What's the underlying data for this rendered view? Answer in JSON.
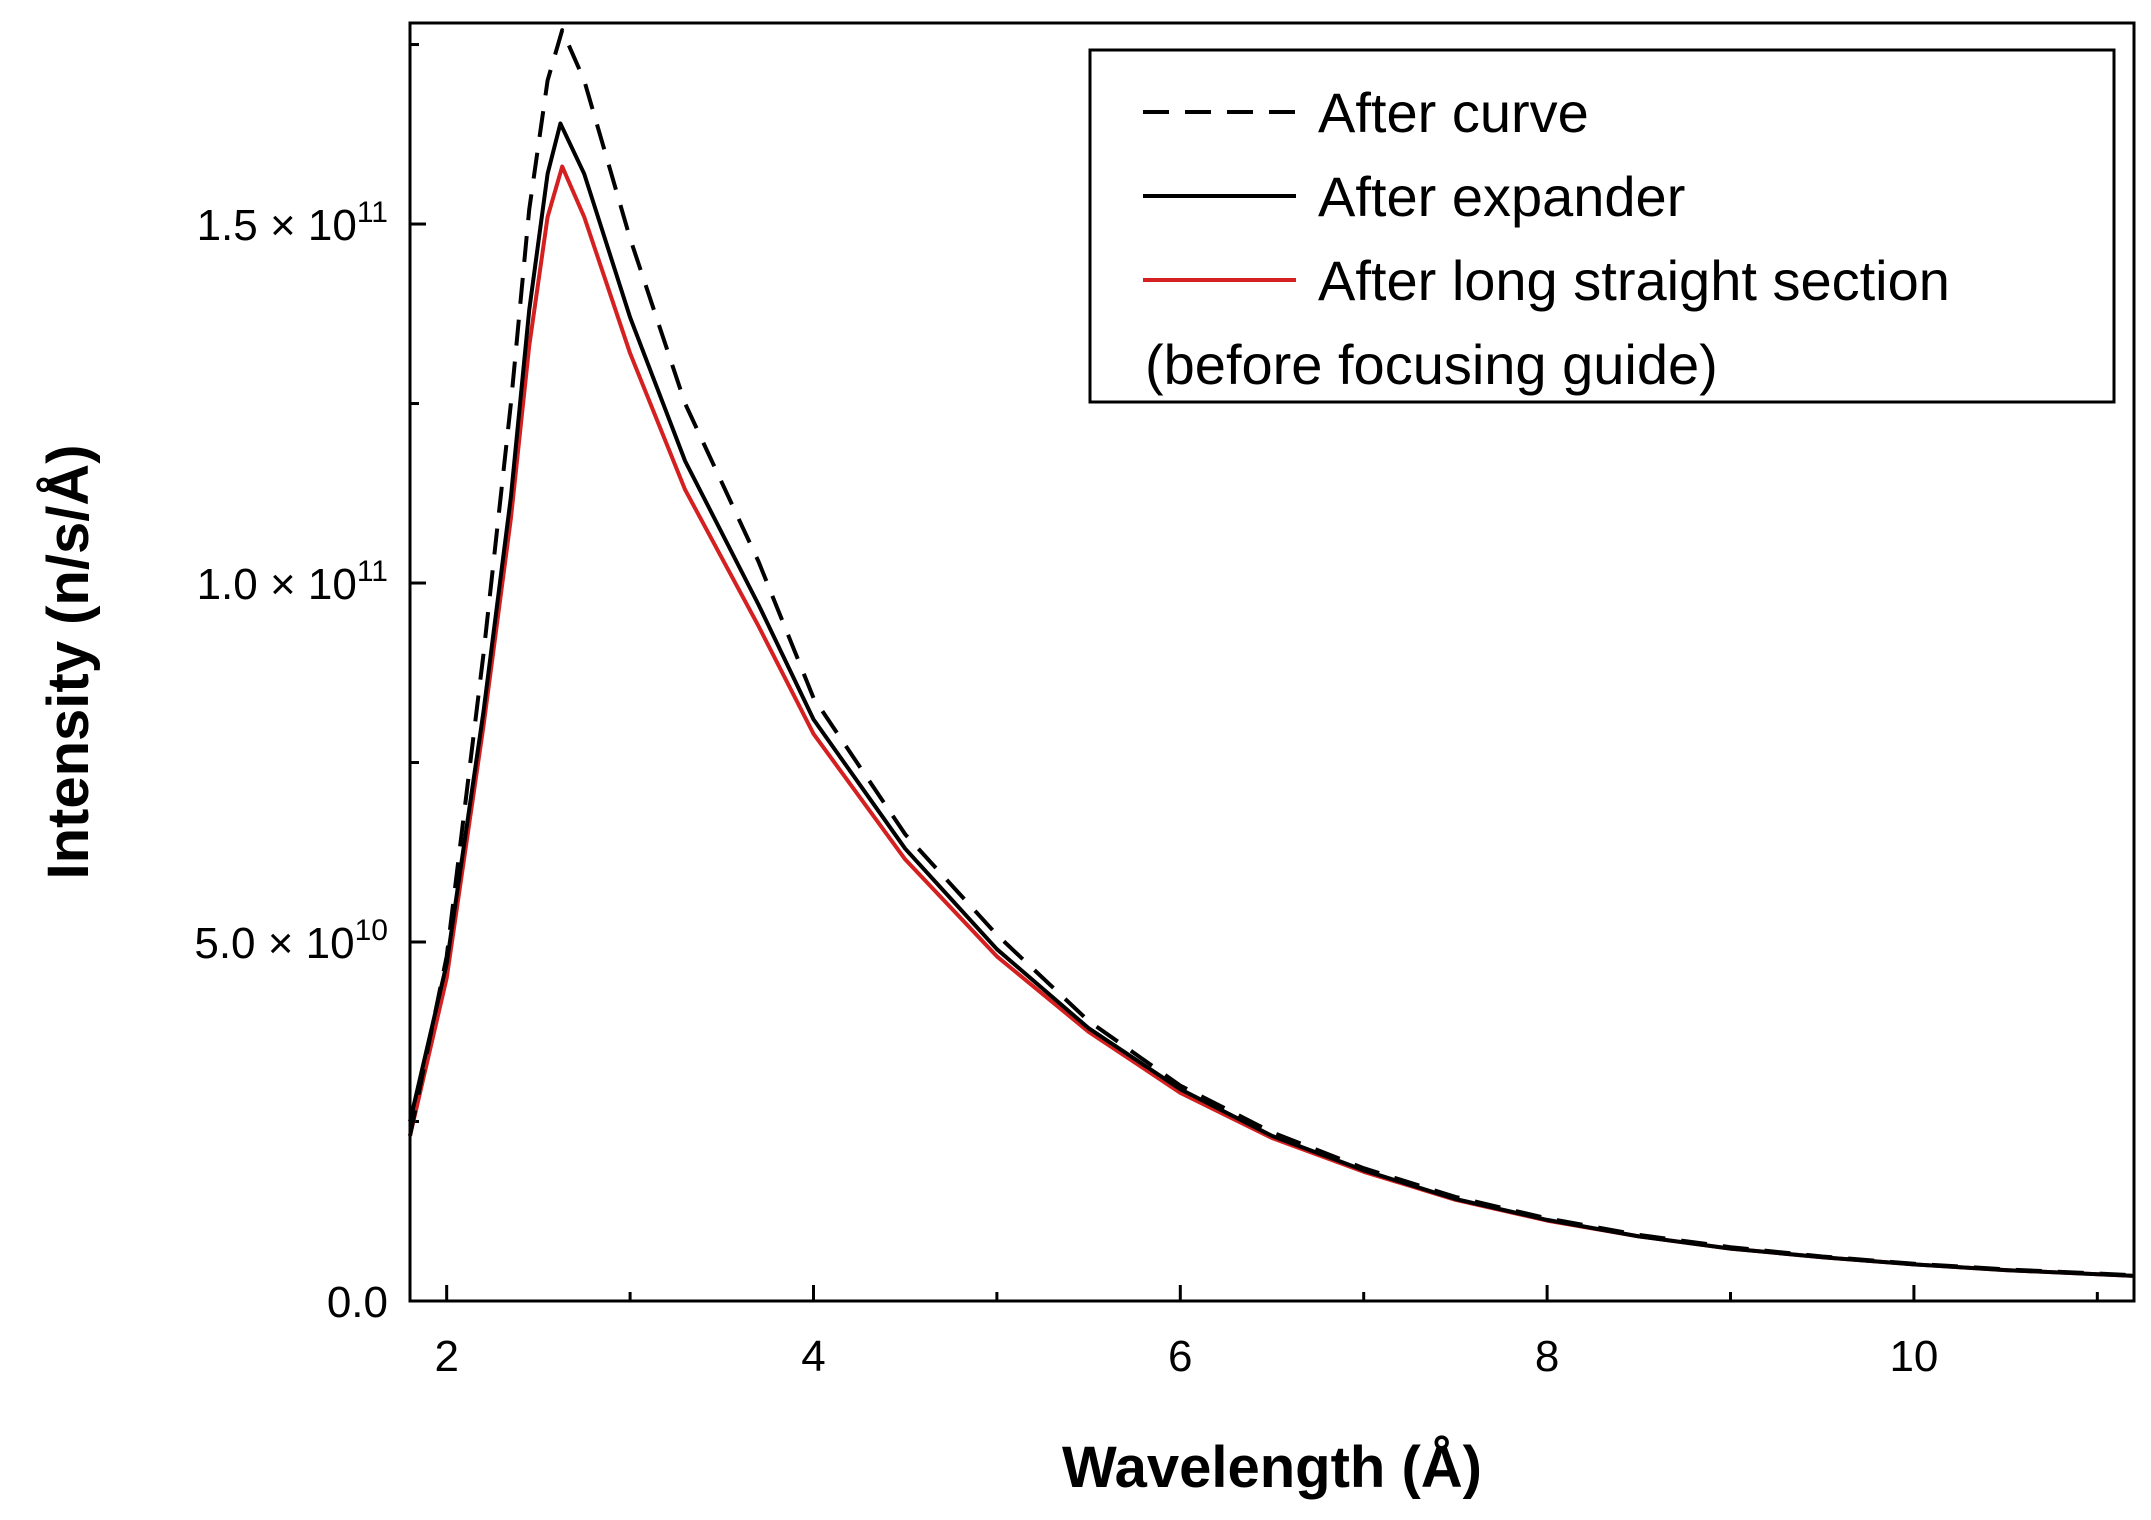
{
  "chart_data": {
    "type": "line",
    "title": "",
    "xlabel": "Wavelength (Å)",
    "ylabel": "Intensity (n/s/Å)",
    "xlim": [
      1.8,
      11.2
    ],
    "ylim": [
      0,
      178000000000
    ],
    "legend_position": "top-right",
    "legend_note": "(before focusing guide)",
    "x_ticks": [
      {
        "value": 2,
        "label": "2"
      },
      {
        "value": 4,
        "label": "4"
      },
      {
        "value": 6,
        "label": "6"
      },
      {
        "value": 8,
        "label": "8"
      },
      {
        "value": 10,
        "label": "10"
      }
    ],
    "y_ticks": [
      {
        "value": 0,
        "mantissa": "0.0",
        "exponent": ""
      },
      {
        "value": 50000000000,
        "mantissa": "5.0 × 10",
        "exponent": "10"
      },
      {
        "value": 100000000000,
        "mantissa": "1.0 × 10",
        "exponent": "11"
      },
      {
        "value": 150000000000,
        "mantissa": "1.5 × 10",
        "exponent": "11"
      }
    ],
    "series": [
      {
        "name": "After curve",
        "color": "#000000",
        "style": "dashed",
        "x": [
          1.8,
          2.0,
          2.2,
          2.35,
          2.45,
          2.55,
          2.63,
          2.75,
          3.0,
          3.3,
          3.7,
          4.0,
          4.5,
          5.0,
          5.5,
          6.0,
          6.5,
          7.0,
          7.5,
          8.0,
          8.5,
          9.0,
          9.5,
          10.0,
          10.5,
          11.2
        ],
        "y": [
          23000000000,
          48000000000,
          90000000000,
          125000000000,
          152000000000,
          170000000000,
          177000000000,
          170000000000,
          148000000000,
          125000000000,
          103000000000,
          84000000000,
          65000000000,
          51000000000,
          39000000000,
          30000000000,
          23500000000,
          18500000000,
          14500000000,
          11500000000,
          9200000000,
          7500000000,
          6200000000,
          5200000000,
          4400000000,
          3600000000
        ]
      },
      {
        "name": "After expander",
        "color": "#000000",
        "style": "solid",
        "x": [
          1.8,
          2.0,
          2.2,
          2.35,
          2.45,
          2.55,
          2.62,
          2.75,
          3.0,
          3.3,
          3.7,
          4.0,
          4.5,
          5.0,
          5.5,
          6.0,
          6.5,
          7.0,
          7.5,
          8.0,
          8.5,
          9.0,
          9.5,
          10.0,
          10.5,
          11.2
        ],
        "y": [
          25000000000,
          47000000000,
          82000000000,
          112000000000,
          138000000000,
          157000000000,
          164000000000,
          157000000000,
          137000000000,
          117000000000,
          97000000000,
          81000000000,
          63000000000,
          49000000000,
          38000000000,
          29500000000,
          23000000000,
          18200000000,
          14200000000,
          11300000000,
          9000000000,
          7300000000,
          6100000000,
          5100000000,
          4300000000,
          3500000000
        ]
      },
      {
        "name": "After long straight section",
        "color": "#d42020",
        "style": "solid",
        "x": [
          1.8,
          2.0,
          2.2,
          2.35,
          2.45,
          2.55,
          2.63,
          2.75,
          3.0,
          3.3,
          3.7,
          4.0,
          4.5,
          5.0,
          5.5,
          6.0,
          6.5,
          7.0,
          7.5,
          8.0,
          8.5,
          9.0,
          9.5,
          10.0,
          10.5,
          11.2
        ],
        "y": [
          23000000000,
          45000000000,
          80000000000,
          109000000000,
          133000000000,
          151000000000,
          158000000000,
          151000000000,
          132000000000,
          113000000000,
          94000000000,
          79000000000,
          61500000000,
          48000000000,
          37500000000,
          29000000000,
          22700000000,
          18000000000,
          14100000000,
          11200000000,
          9000000000,
          7300000000,
          6100000000,
          5100000000,
          4300000000,
          3500000000
        ]
      }
    ]
  }
}
